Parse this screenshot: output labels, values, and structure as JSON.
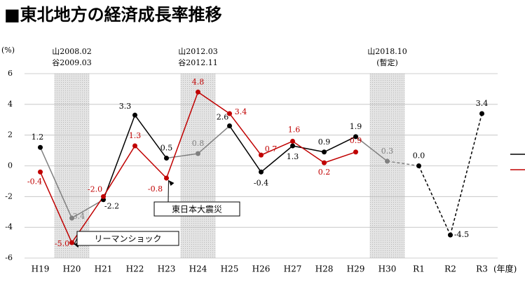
{
  "chart_data": {
    "type": "line",
    "title": "■東北地方の経済成長率推移",
    "y_label": "(%)",
    "x_label": "(年度)",
    "categories": [
      "H19",
      "H20",
      "H21",
      "H22",
      "H23",
      "H24",
      "H25",
      "H26",
      "H27",
      "H28",
      "H29",
      "H30",
      "R1",
      "R2",
      "R3"
    ],
    "series": [
      {
        "color": "#000000",
        "point_colors": [
          "#000000",
          "#808080",
          "#000000",
          "#000000",
          "#000000",
          "#808080",
          "#000000",
          "#000000",
          "#000000",
          "#000000",
          "#000000",
          "#808080",
          "#000000",
          "#000000",
          "#000000"
        ],
        "values": [
          1.2,
          -3.4,
          -2.2,
          3.3,
          0.5,
          0.8,
          2.6,
          -0.4,
          1.3,
          0.9,
          1.9,
          0.3,
          0,
          -4.5,
          3.4
        ],
        "value_labels": [
          "1.2",
          "-3.4",
          "-2.2",
          "3.3",
          "0.5",
          "0.8",
          "2.6",
          "-0.4",
          "1.3",
          "0.9",
          "1.9",
          "0.3",
          "0.0",
          "-4.5",
          "3.4"
        ],
        "dashed_from": 11
      },
      {
        "color": "#c00000",
        "values": [
          -0.4,
          -5,
          -2,
          1.3,
          -0.8,
          4.8,
          3.4,
          0.7,
          1.6,
          0.2,
          0.9,
          null,
          null,
          null,
          null
        ],
        "value_labels": [
          "-0.4",
          "-5.0",
          "-2.0",
          "1.3",
          "-0.8",
          "4.8",
          "3.4",
          "0.7",
          "1.6",
          "0.2",
          "0.9",
          null,
          null,
          null,
          null
        ]
      }
    ],
    "shaded": [
      1,
      5,
      11
    ],
    "annotations": [
      {
        "at": 1,
        "lines": [
          "山2008.02",
          "谷2009.03"
        ]
      },
      {
        "at": 5,
        "lines": [
          "山2012.03",
          "谷2012.11"
        ]
      },
      {
        "at": 11,
        "lines": [
          "山2018.10",
          "(暫定)"
        ]
      }
    ],
    "callouts": [
      {
        "text": "リーマンショック",
        "target": "chart_data.series.1.values.1"
      },
      {
        "text": "東日本大震災",
        "target": "chart_data.series.1.values.4"
      }
    ],
    "ylim": [
      -6,
      6
    ],
    "yticks": [
      -6,
      -4,
      -2,
      0,
      2,
      4,
      6
    ],
    "grid": true
  }
}
